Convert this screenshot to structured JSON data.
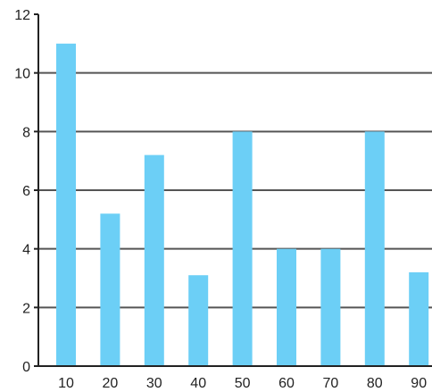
{
  "chart_data": {
    "type": "bar",
    "title": "",
    "xlabel": "",
    "ylabel": "",
    "categories": [
      "10",
      "20",
      "30",
      "40",
      "50",
      "60",
      "70",
      "80",
      "90"
    ],
    "values": [
      11,
      5.2,
      7.2,
      3.1,
      8,
      4,
      4,
      8,
      3.2
    ],
    "ylim": [
      0,
      12
    ],
    "y_ticks": [
      0,
      2,
      4,
      6,
      8,
      10,
      12
    ],
    "grid": true,
    "bar_color": "#6ccff6",
    "grid_color": "#555555",
    "axis_color": "#222222"
  }
}
